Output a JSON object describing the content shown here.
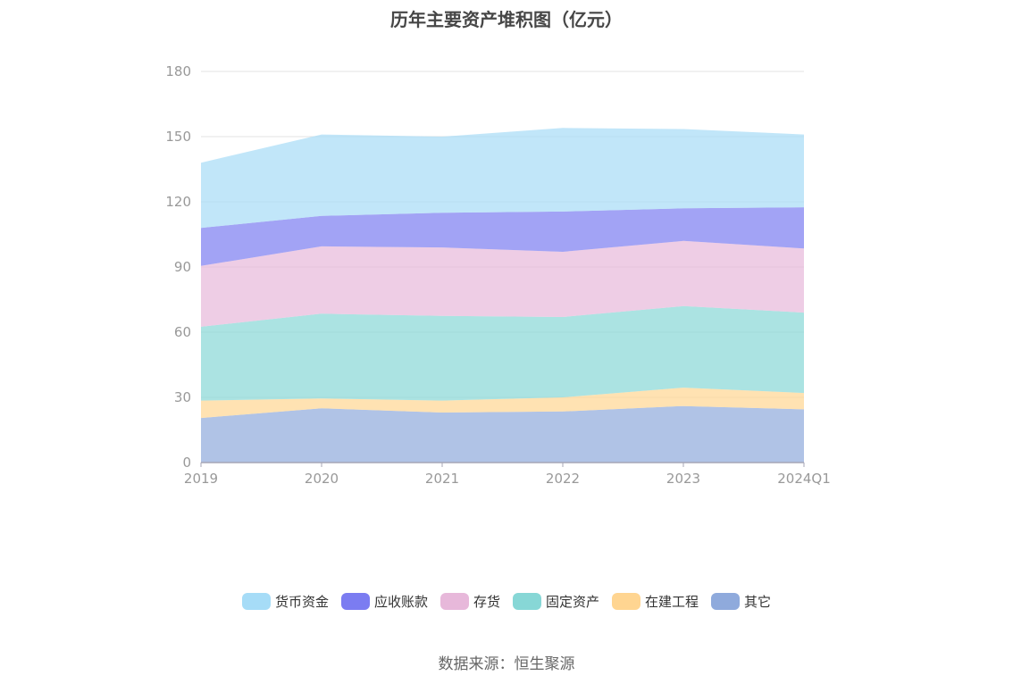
{
  "chart_data": {
    "type": "area",
    "stacked": true,
    "title": "历年主要资产堆积图（亿元）",
    "x": [
      "2019",
      "2020",
      "2021",
      "2022",
      "2023",
      "2024Q1"
    ],
    "y_ticks": [
      "0",
      "30",
      "60",
      "90",
      "120",
      "150",
      "180"
    ],
    "ylim": [
      0,
      180
    ],
    "grid": true,
    "legend_position": "bottom",
    "series": [
      {
        "name": "其它",
        "color": "#8faadc",
        "values": [
          20.5,
          25,
          23,
          23.5,
          26,
          24.5
        ]
      },
      {
        "name": "在建工程",
        "color": "#ffd591",
        "values": [
          8,
          4.5,
          5.5,
          6.5,
          8.5,
          7.5
        ]
      },
      {
        "name": "固定资产",
        "color": "#87d7d6",
        "values": [
          34,
          39,
          39,
          37,
          37.5,
          37
        ]
      },
      {
        "name": "存货",
        "color": "#e7b8da",
        "values": [
          28,
          31,
          31.5,
          30,
          30,
          29.5
        ]
      },
      {
        "name": "应收账款",
        "color": "#7b7cf1",
        "values": [
          17.5,
          14,
          16,
          18.5,
          15,
          19
        ]
      },
      {
        "name": "货币资金",
        "color": "#a6dcf7",
        "values": [
          30,
          37.5,
          35,
          38.5,
          36.5,
          33.5
        ]
      }
    ],
    "legend_order": [
      "货币资金",
      "应收账款",
      "存货",
      "固定资产",
      "在建工程",
      "其它"
    ]
  },
  "source": "数据来源：恒生聚源"
}
